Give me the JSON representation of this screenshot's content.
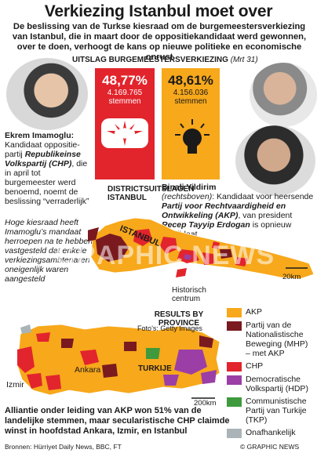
{
  "title": "Verkiezing Istanbul moet over",
  "intro": "De beslissing van de Turkse kiesraad om de burgemeestersverkiezing van Istanbul, die in maart door de oppositiekandidaat werd gewonnen, over te doen, verhoogt de kans op nieuwe politieke en economische onrust",
  "results_header": "UITSLAG BURGEMEESTERSVERKIEZING",
  "results_date": "(Mrt 31)",
  "chp": {
    "pct": "48,77%",
    "votes": "4.169.765",
    "votes_label": "stemmen",
    "color": "#e2242c"
  },
  "akp": {
    "pct": "48,61%",
    "votes": "4.156.036",
    "votes_label": "stemmen",
    "color": "#f7a81b"
  },
  "imamoglu": {
    "name": "Ekrem Imamoglu:",
    "text1": "Kandidaat oppositie-partij ",
    "party": "Republikeinse Volkspartij (CHP)",
    "text2": ", die in april tot burgemeester werd benoemd, noemt de beslissing “verraderlijk”"
  },
  "quote": "Hoge kiesraad heeft Imamoglu’s mandaat herroepen na te hebben vastgesteld dat enkele verkiezingsambtenaren oneigenlijk waren aangesteld",
  "districts_label": "DISTRICTSUITSLAGEN ISTANBUL",
  "yildirim": {
    "name": "Binali Yildirim",
    "pos": "(rechtsboven)",
    "text": ": Kandidaat voor heersende "
  },
  "akp_text": {
    "party": "Partij voor Rechtvaardigheid en Ontwikkeling (AKP)",
    "text": ", van president ",
    "president": "Recep Tayyip Erdogan",
    "end": " is opnieuw kandidaat"
  },
  "historic": "Historisch centrum",
  "map_label": "ISTANBUL",
  "km20": "20km",
  "province_label": "RESULTS BY PROVINCE",
  "turkije": "TURKIJE",
  "ankara": "Ankara",
  "izmir": "Izmir",
  "km200": "200km",
  "foto": "Foto’s: Getty Images",
  "watermark": "GRAPHIC NEWS",
  "legend": [
    {
      "label": "AKP",
      "color": "#f7a81b"
    },
    {
      "label": "Partij van de Nationalistische Beweging (MHP) – met AKP",
      "color": "#7a1a1f"
    },
    {
      "label": "CHP",
      "color": "#e2242c"
    },
    {
      "label": "Democratische Volkspartij (HDP)",
      "color": "#9b3fa6"
    },
    {
      "label": "Communistische Partij van Turkije (TKP)",
      "color": "#3e9a3c"
    },
    {
      "label": "Onafhankelijk",
      "color": "#aab3b8"
    }
  ],
  "bottom_note": "Alliantie onder leiding van AKP won 51% van de landelijke stemmen, maar secularistische CHP claimde winst in hoofdstad Ankara, Izmir, en Istanbul",
  "sources": "Bronnen: Hürriyet Daily News, BBC, FT",
  "copyright": "© GRAPHIC NEWS"
}
